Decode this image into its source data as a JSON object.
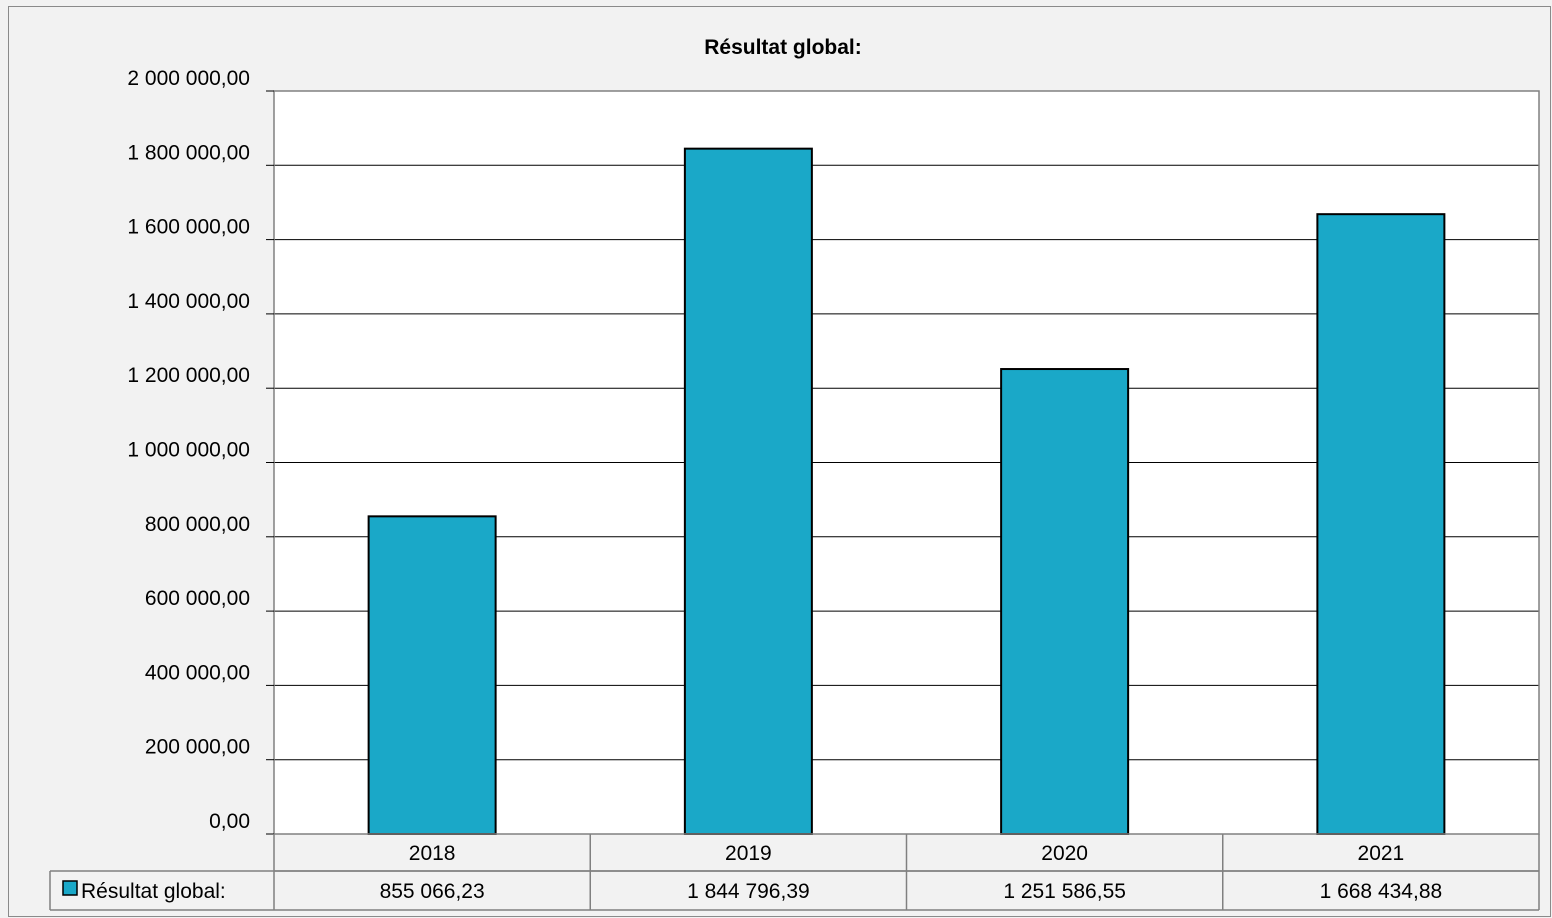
{
  "chart_data": {
    "type": "bar",
    "title": "Résultat global:",
    "categories": [
      "2018",
      "2019",
      "2020",
      "2021"
    ],
    "series": [
      {
        "name": "Résultat global:",
        "values": [
          855066.23,
          1844796.39,
          1251586.55,
          1668434.88
        ],
        "labels": [
          "855 066,23",
          "1 844 796,39",
          "1 251 586,55",
          "1 668 434,88"
        ],
        "color": "#1aa8c8"
      }
    ],
    "ylim": [
      0,
      2000000
    ],
    "yticks": [
      {
        "value": 0,
        "label": "0,00"
      },
      {
        "value": 200000,
        "label": "200 000,00"
      },
      {
        "value": 400000,
        "label": "400 000,00"
      },
      {
        "value": 600000,
        "label": "600 000,00"
      },
      {
        "value": 800000,
        "label": "800 000,00"
      },
      {
        "value": 1000000,
        "label": "1 000 000,00"
      },
      {
        "value": 1200000,
        "label": "1 200 000,00"
      },
      {
        "value": 1400000,
        "label": "1 400 000,00"
      },
      {
        "value": 1600000,
        "label": "1 600 000,00"
      },
      {
        "value": 1800000,
        "label": "1 800 000,00"
      },
      {
        "value": 2000000,
        "label": "2 000 000,00"
      }
    ],
    "grid": true,
    "legend": "data-table"
  }
}
